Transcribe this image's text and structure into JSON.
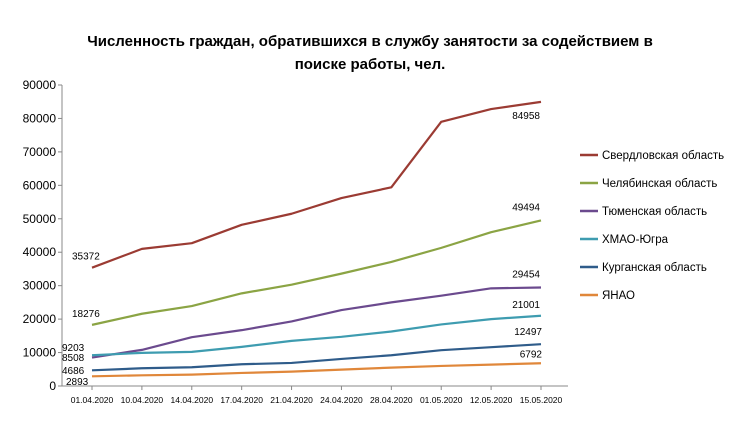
{
  "chart_data": {
    "type": "line",
    "title": "Численность граждан, обратившихся в службу занятости за содействием в поиске работы, чел.",
    "categories": [
      "01.04.2020",
      "10.04.2020",
      "14.04.2020",
      "17.04.2020",
      "21.04.2020",
      "24.04.2020",
      "28.04.2020",
      "01.05.2020",
      "12.05.2020",
      "15.05.2020"
    ],
    "ylim": [
      0,
      90000
    ],
    "yticks": [
      0,
      10000,
      20000,
      30000,
      40000,
      50000,
      60000,
      70000,
      80000,
      90000
    ],
    "ytick_labels": [
      "0",
      "10000",
      "20000",
      "30000",
      "40000",
      "50000",
      "60000",
      "70000",
      "80000",
      "90000"
    ],
    "legend_position": "right",
    "series": [
      {
        "name": "Свердловская область",
        "color": "#9B3B33",
        "values": [
          35372,
          41000,
          42700,
          48200,
          51500,
          56200,
          59400,
          79000,
          82800,
          84958
        ],
        "first_label": "35372",
        "last_label": "84958"
      },
      {
        "name": "Челябинская область",
        "color": "#8BA444",
        "values": [
          18276,
          21600,
          23900,
          27700,
          30300,
          33600,
          37100,
          41300,
          46000,
          49494
        ],
        "first_label": "18276",
        "last_label": "49494"
      },
      {
        "name": "Тюменская область",
        "color": "#6B4A8E",
        "values": [
          8508,
          10800,
          14600,
          16700,
          19300,
          22700,
          25000,
          27000,
          29200,
          29454
        ],
        "first_label": "8508",
        "last_label": "29454"
      },
      {
        "name": "ХМАО-Югра",
        "color": "#3E9CB0",
        "values": [
          9203,
          9900,
          10200,
          11700,
          13500,
          14700,
          16300,
          18400,
          20000,
          21001
        ],
        "first_label": "9203",
        "last_label": "21001"
      },
      {
        "name": "Курганская область",
        "color": "#2F5C8A",
        "values": [
          4686,
          5300,
          5600,
          6500,
          6900,
          8100,
          9200,
          10700,
          11600,
          12497
        ],
        "first_label": "4686",
        "last_label": "12497"
      },
      {
        "name": "ЯНАО",
        "color": "#E0873A",
        "values": [
          2893,
          3200,
          3400,
          3900,
          4300,
          4900,
          5500,
          6000,
          6400,
          6792
        ],
        "first_label": "2893",
        "last_label": "6792"
      }
    ]
  }
}
